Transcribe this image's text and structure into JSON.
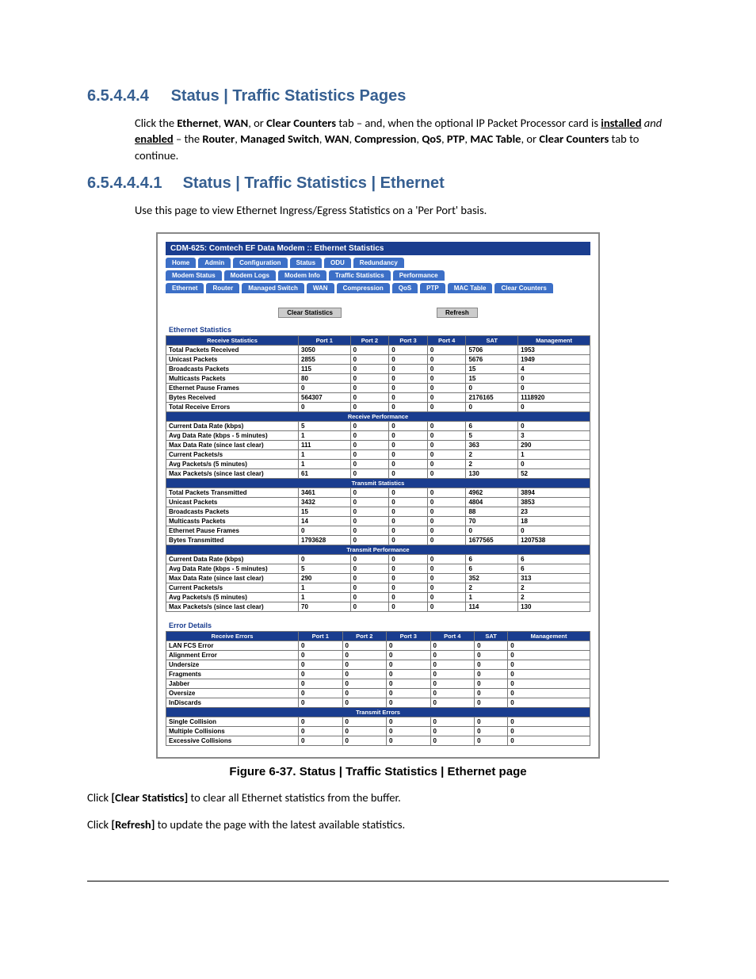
{
  "section1": {
    "num": "6.5.4.4.4",
    "title": "Status | Traffic Statistics Pages"
  },
  "para1_pre": "Click the ",
  "para1_b1": "Ethernet",
  "para1_mid1": ", ",
  "para1_b2": "WAN",
  "para1_mid2": ", or ",
  "para1_b3": "Clear Counters",
  "para1_mid3": " tab – and, when the optional IP Packet Processor card is ",
  "para1_u1": "installed",
  "para1_i": " and ",
  "para1_u2": "enabled",
  "para1_mid4": " – the ",
  "para1_b4": "Router",
  "para1_mid5": ", ",
  "para1_b5": "Managed Switch",
  "para1_mid6": ", ",
  "para1_b6": "WAN",
  "para1_mid7": ", ",
  "para1_b7": "Compression",
  "para1_mid8": ", ",
  "para1_b8": "QoS",
  "para1_mid9": ", ",
  "para1_b9": "PTP",
  "para1_mid10": ", ",
  "para1_b10": "MAC Table",
  "para1_mid11": ", or ",
  "para1_b11": "Clear Counters",
  "para1_end": " tab to continue.",
  "section2": {
    "num": "6.5.4.4.4.1",
    "title": "Status | Traffic Statistics | Ethernet"
  },
  "para2": "Use this page to view Ethernet Ingress/Egress Statistics on a 'Per Port' basis.",
  "shot": {
    "title": "CDM-625: Comtech EF Data Modem :: Ethernet Statistics",
    "toptabs": [
      "Home",
      "Admin",
      "Configuration",
      "Status",
      "ODU",
      "Redundancy"
    ],
    "midtabs": [
      "Modem Status",
      "Modem Logs",
      "Modem Info",
      "Traffic Statistics",
      "Performance"
    ],
    "lowtabs": [
      "Ethernet",
      "Router",
      "Managed Switch",
      "WAN",
      "Compression",
      "QoS",
      "PTP",
      "MAC Table",
      "Clear Counters"
    ],
    "btn_clear": "Clear Statistics",
    "btn_refresh": "Refresh",
    "fs1": "Ethernet Statistics",
    "cols": [
      "Port 1",
      "Port 2",
      "Port 3",
      "Port 4",
      "SAT",
      "Management"
    ],
    "rx_head": "Receive Statistics",
    "rx_rows": [
      {
        "l": "Total Packets Received",
        "i": 0,
        "v": [
          "3050",
          "0",
          "0",
          "0",
          "5706",
          "1953"
        ]
      },
      {
        "l": "Unicast Packets",
        "i": 1,
        "v": [
          "2855",
          "0",
          "0",
          "0",
          "5676",
          "1949"
        ]
      },
      {
        "l": "Broadcasts Packets",
        "i": 1,
        "v": [
          "115",
          "0",
          "0",
          "0",
          "15",
          "4"
        ]
      },
      {
        "l": "Multicasts Packets",
        "i": 1,
        "v": [
          "80",
          "0",
          "0",
          "0",
          "15",
          "0"
        ]
      },
      {
        "l": "Ethernet Pause Frames",
        "i": 1,
        "v": [
          "0",
          "0",
          "0",
          "0",
          "0",
          "0"
        ]
      },
      {
        "l": "Bytes Received",
        "i": 0,
        "v": [
          "564307",
          "0",
          "0",
          "0",
          "2176165",
          "1118920"
        ]
      },
      {
        "l": "Total Receive Errors",
        "i": 0,
        "v": [
          "0",
          "0",
          "0",
          "0",
          "0",
          "0"
        ]
      }
    ],
    "rxp_head": "Receive Performance",
    "rxp_rows": [
      {
        "l": "Current Data Rate (kbps)",
        "v": [
          "5",
          "0",
          "0",
          "0",
          "6",
          "0"
        ]
      },
      {
        "l": "Avg Data Rate (kbps - 5 minutes)",
        "v": [
          "1",
          "0",
          "0",
          "0",
          "5",
          "3"
        ]
      },
      {
        "l": "Max Data Rate (since last clear)",
        "v": [
          "111",
          "0",
          "0",
          "0",
          "363",
          "290"
        ]
      },
      {
        "l": "Current Packets/s",
        "v": [
          "1",
          "0",
          "0",
          "0",
          "2",
          "1"
        ]
      },
      {
        "l": "Avg Packets/s (5 minutes)",
        "v": [
          "1",
          "0",
          "0",
          "0",
          "2",
          "0"
        ]
      },
      {
        "l": "Max Packets/s (since last clear)",
        "v": [
          "61",
          "0",
          "0",
          "0",
          "130",
          "52"
        ]
      }
    ],
    "tx_head": "Transmit Statistics",
    "tx_rows": [
      {
        "l": "Total Packets Transmitted",
        "i": 0,
        "v": [
          "3461",
          "0",
          "0",
          "0",
          "4962",
          "3894"
        ]
      },
      {
        "l": "Unicast Packets",
        "i": 1,
        "v": [
          "3432",
          "0",
          "0",
          "0",
          "4804",
          "3853"
        ]
      },
      {
        "l": "Broadcasts Packets",
        "i": 1,
        "v": [
          "15",
          "0",
          "0",
          "0",
          "88",
          "23"
        ]
      },
      {
        "l": "Multicasts Packets",
        "i": 1,
        "v": [
          "14",
          "0",
          "0",
          "0",
          "70",
          "18"
        ]
      },
      {
        "l": "Ethernet Pause Frames",
        "i": 1,
        "v": [
          "0",
          "0",
          "0",
          "0",
          "0",
          "0"
        ]
      },
      {
        "l": "Bytes Transmitted",
        "i": 0,
        "v": [
          "1793628",
          "0",
          "0",
          "0",
          "1677565",
          "1207538"
        ]
      }
    ],
    "txp_head": "Transmit Performance",
    "txp_rows": [
      {
        "l": "Current Data Rate (kbps)",
        "v": [
          "0",
          "0",
          "0",
          "0",
          "6",
          "6"
        ]
      },
      {
        "l": "Avg Data Rate (kbps - 5 minutes)",
        "v": [
          "5",
          "0",
          "0",
          "0",
          "6",
          "6"
        ]
      },
      {
        "l": "Max Data Rate (since last clear)",
        "v": [
          "290",
          "0",
          "0",
          "0",
          "352",
          "313"
        ]
      },
      {
        "l": "Current Packets/s",
        "v": [
          "1",
          "0",
          "0",
          "0",
          "2",
          "2"
        ]
      },
      {
        "l": "Avg Packets/s (5 minutes)",
        "v": [
          "1",
          "0",
          "0",
          "0",
          "1",
          "2"
        ]
      },
      {
        "l": "Max Packets/s (since last clear)",
        "v": [
          "70",
          "0",
          "0",
          "0",
          "114",
          "130"
        ]
      }
    ],
    "fs2": "Error Details",
    "rxe_head": "Receive Errors",
    "rxe_rows": [
      {
        "l": "LAN FCS Error",
        "v": [
          "0",
          "0",
          "0",
          "0",
          "0",
          "0"
        ]
      },
      {
        "l": "Alignment Error",
        "v": [
          "0",
          "0",
          "0",
          "0",
          "0",
          "0"
        ]
      },
      {
        "l": "Undersize",
        "v": [
          "0",
          "0",
          "0",
          "0",
          "0",
          "0"
        ]
      },
      {
        "l": "Fragments",
        "v": [
          "0",
          "0",
          "0",
          "0",
          "0",
          "0"
        ]
      },
      {
        "l": "Jabber",
        "v": [
          "0",
          "0",
          "0",
          "0",
          "0",
          "0"
        ]
      },
      {
        "l": "Oversize",
        "v": [
          "0",
          "0",
          "0",
          "0",
          "0",
          "0"
        ]
      },
      {
        "l": "InDiscards",
        "v": [
          "0",
          "0",
          "0",
          "0",
          "0",
          "0"
        ]
      }
    ],
    "txe_head": "Transmit Errors",
    "txe_rows": [
      {
        "l": "Single Collision",
        "v": [
          "0",
          "0",
          "0",
          "0",
          "0",
          "0"
        ]
      },
      {
        "l": "Multiple Collisions",
        "v": [
          "0",
          "0",
          "0",
          "0",
          "0",
          "0"
        ]
      },
      {
        "l": "Excessive Collisions",
        "v": [
          "0",
          "0",
          "0",
          "0",
          "0",
          "0"
        ]
      }
    ]
  },
  "caption": "Figure 6-37. Status | Traffic Statistics | Ethernet page",
  "para3_pre": "Click ",
  "para3_b": "[Clear Statistics]",
  "para3_post": " to clear all Ethernet statistics from the buffer.",
  "para4_pre": "Click ",
  "para4_b": "[Refresh]",
  "para4_post": " to update the page with the latest available statistics."
}
